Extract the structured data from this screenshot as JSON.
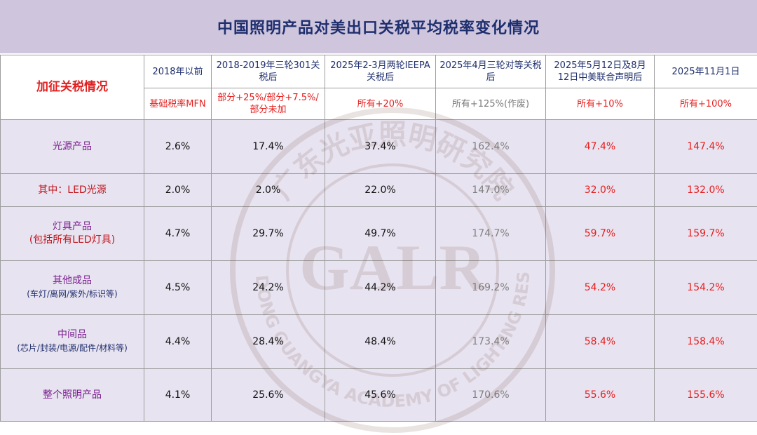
{
  "title": "中国照明产品对美出口关税平均税率变化情况",
  "header": {
    "label": "加征关税情况",
    "columns": [
      {
        "period": "2018年以前",
        "rate": "基础税率MFN",
        "rate_style": "red"
      },
      {
        "period": "2018-2019年三轮301关税后",
        "rate": "部分+25%/部分+7.5%/部分未加",
        "rate_style": "red"
      },
      {
        "period": "2025年2-3月两轮IEEPA关税后",
        "rate": "所有+20%",
        "rate_style": "red"
      },
      {
        "period": "2025年4月三轮对等关税后",
        "rate": "所有+125%(作废)",
        "rate_style": "gray"
      },
      {
        "period": "2025年5月12日及8月12日中美联合声明后",
        "rate": "所有+10%",
        "rate_style": "red"
      },
      {
        "period": "2025年11月1日",
        "rate": "所有+100%",
        "rate_style": "red"
      }
    ]
  },
  "rows": [
    {
      "name": "光源产品",
      "sub": "",
      "values": [
        "2.6%",
        "17.4%",
        "37.4%",
        "162.4%",
        "47.4%",
        "147.4%"
      ]
    },
    {
      "name": "其中：LED光源",
      "sub": "",
      "values": [
        "2.0%",
        "2.0%",
        "22.0%",
        "147.0%",
        "32.0%",
        "132.0%"
      ]
    },
    {
      "name": "灯具产品",
      "sub": "(包括所有LED灯具)",
      "values": [
        "4.7%",
        "29.7%",
        "49.7%",
        "174.7%",
        "59.7%",
        "159.7%"
      ]
    },
    {
      "name": "其他成品",
      "sub": "(车灯/离网/紫外/标识等)",
      "values": [
        "4.5%",
        "24.2%",
        "44.2%",
        "169.2%",
        "54.2%",
        "154.2%"
      ]
    },
    {
      "name": "中间品",
      "sub": "(芯片/封装/电源/配件/材料等)",
      "values": [
        "4.4%",
        "28.4%",
        "48.4%",
        "173.4%",
        "58.4%",
        "158.4%"
      ]
    },
    {
      "name": "整个照明产品",
      "sub": "",
      "values": [
        "4.1%",
        "25.6%",
        "45.6%",
        "170.6%",
        "55.6%",
        "155.6%"
      ]
    }
  ],
  "watermark": {
    "text": "GALR",
    "ring_top": "广东光亚照明研究院",
    "ring_bottom": "GUANGDONG GUANGYA ACADEMY OF LIGHTING RESEARCH"
  },
  "colors": {
    "title_bg": "#cfc6de",
    "row_bg": "#e8e3f0",
    "red": "#e61e1e",
    "category": "#7a1f8f",
    "navy": "#1f2f6e"
  }
}
